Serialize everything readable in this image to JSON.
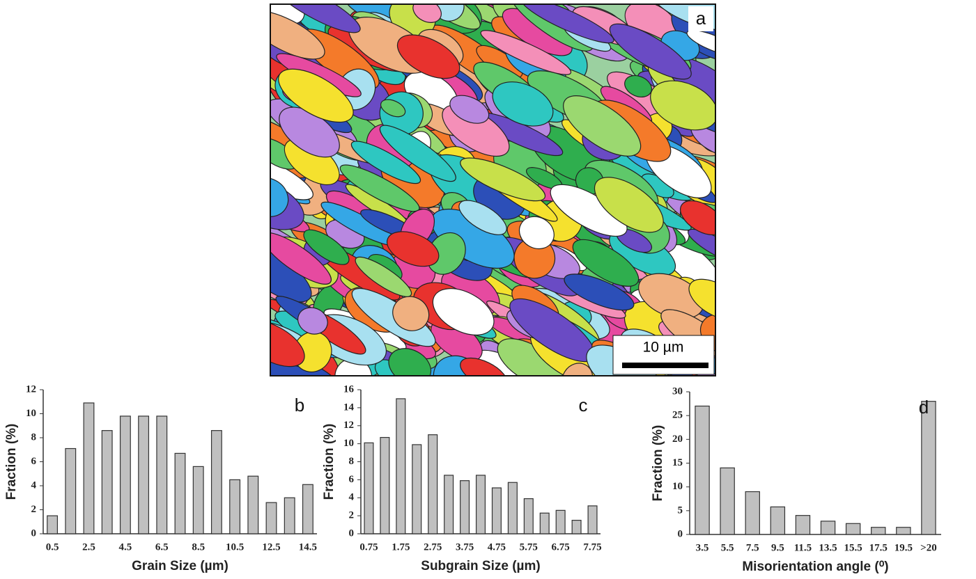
{
  "image_panel": {
    "label": "a",
    "scale_bar": "10 µm"
  },
  "chart_data": [
    {
      "type": "bar",
      "panel_label": "b",
      "x_label": "Grain Size (µm)",
      "y_label": "Fraction (%)",
      "color": "#c0c0c0",
      "categories": [
        "0.5",
        null,
        "2.5",
        null,
        "4.5",
        null,
        "6.5",
        null,
        "8.5",
        null,
        "10.5",
        null,
        "12.5",
        null,
        "14.5"
      ],
      "values": [
        1.5,
        7.1,
        10.9,
        8.6,
        9.8,
        9.8,
        9.8,
        6.7,
        5.6,
        8.6,
        4.5,
        4.8,
        2.6,
        3.0,
        4.1
      ],
      "ylim": [
        0,
        12
      ],
      "yticks": [
        0,
        2,
        4,
        6,
        8,
        10,
        12
      ]
    },
    {
      "type": "bar",
      "panel_label": "c",
      "x_label": "Subgrain Size (µm)",
      "y_label": "Fraction (%)",
      "color": "#c0c0c0",
      "categories": [
        "0.75",
        null,
        "1.75",
        null,
        "2.75",
        null,
        "3.75",
        null,
        "4.75",
        null,
        "5.75",
        null,
        "6.75",
        null,
        "7.75"
      ],
      "values": [
        10.1,
        10.7,
        15.0,
        9.9,
        11.0,
        6.5,
        5.9,
        6.5,
        5.1,
        5.7,
        3.9,
        2.3,
        2.6,
        1.5,
        3.1
      ],
      "ylim": [
        0,
        16
      ],
      "yticks": [
        0,
        2,
        4,
        6,
        8,
        10,
        12,
        14,
        16
      ]
    },
    {
      "type": "bar",
      "panel_label": "d",
      "x_label": "Misorientation angle (⁰)",
      "y_label": "Fraction (%)",
      "color": "#c0c0c0",
      "categories": [
        "3.5",
        "5.5",
        "7.5",
        "9.5",
        "11.5",
        "13.5",
        "15.5",
        "17.5",
        "19.5",
        ">20"
      ],
      "values": [
        27,
        14,
        9,
        5.8,
        4,
        2.8,
        2.3,
        1.5,
        1.5,
        28
      ],
      "ylim": [
        0,
        30
      ],
      "yticks": [
        0,
        5,
        10,
        15,
        20,
        25,
        30
      ]
    }
  ]
}
